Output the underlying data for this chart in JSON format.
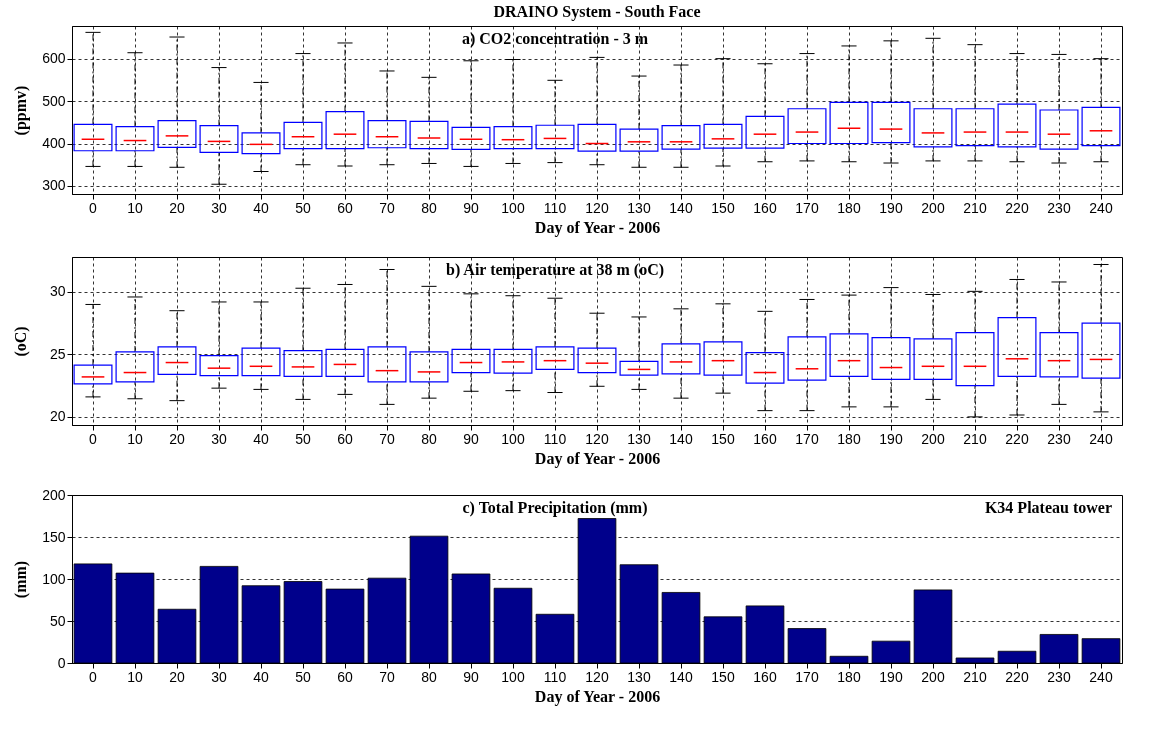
{
  "chart_data": [
    {
      "type": "box",
      "title": "DRAINO System - South Face",
      "subtitle": "a) CO2 concentration - 3 m",
      "xlabel": "Day of Year - 2006",
      "ylabel": "(ppmv)",
      "categories": [
        "0",
        "10",
        "20",
        "30",
        "40",
        "50",
        "60",
        "70",
        "80",
        "90",
        "100",
        "110",
        "120",
        "130",
        "140",
        "150",
        "160",
        "170",
        "180",
        "190",
        "200",
        "210",
        "220",
        "230",
        "240"
      ],
      "ylim": [
        281,
        677
      ],
      "yticks": [
        300,
        400,
        500,
        600
      ],
      "grid": true,
      "series": [
        {
          "color": "#0000ff",
          "boxes": [
            {
              "low": 346,
              "q1": 383,
              "median": 410,
              "q3": 445,
              "high": 662
            },
            {
              "low": 346,
              "q1": 383,
              "median": 407,
              "q3": 440,
              "high": 614
            },
            {
              "low": 344,
              "q1": 391,
              "median": 418,
              "q3": 454,
              "high": 651
            },
            {
              "low": 304,
              "q1": 379,
              "median": 405,
              "q3": 442,
              "high": 579
            },
            {
              "low": 334,
              "q1": 376,
              "median": 398,
              "q3": 425,
              "high": 544
            },
            {
              "low": 350,
              "q1": 388,
              "median": 416,
              "q3": 450,
              "high": 612
            },
            {
              "low": 347,
              "q1": 388,
              "median": 422,
              "q3": 475,
              "high": 637
            },
            {
              "low": 350,
              "q1": 390,
              "median": 416,
              "q3": 454,
              "high": 571
            },
            {
              "low": 353,
              "q1": 388,
              "median": 413,
              "q3": 452,
              "high": 556
            },
            {
              "low": 346,
              "q1": 386,
              "median": 410,
              "q3": 438,
              "high": 595
            },
            {
              "low": 353,
              "q1": 388,
              "median": 409,
              "q3": 440,
              "high": 598
            },
            {
              "low": 355,
              "q1": 388,
              "median": 412,
              "q3": 443,
              "high": 549
            },
            {
              "low": 350,
              "q1": 382,
              "median": 400,
              "q3": 445,
              "high": 603
            },
            {
              "low": 344,
              "q1": 382,
              "median": 404,
              "q3": 434,
              "high": 559
            },
            {
              "low": 344,
              "q1": 387,
              "median": 404,
              "q3": 442,
              "high": 585
            },
            {
              "low": 347,
              "q1": 389,
              "median": 411,
              "q3": 445,
              "high": 600
            },
            {
              "low": 357,
              "q1": 389,
              "median": 422,
              "q3": 464,
              "high": 588
            },
            {
              "low": 359,
              "q1": 400,
              "median": 427,
              "q3": 482,
              "high": 612
            },
            {
              "low": 357,
              "q1": 400,
              "median": 436,
              "q3": 497,
              "high": 630
            },
            {
              "low": 354,
              "q1": 402,
              "median": 434,
              "q3": 497,
              "high": 642
            },
            {
              "low": 359,
              "q1": 392,
              "median": 425,
              "q3": 482,
              "high": 648
            },
            {
              "low": 359,
              "q1": 395,
              "median": 427,
              "q3": 482,
              "high": 633
            },
            {
              "low": 357,
              "q1": 392,
              "median": 427,
              "q3": 493,
              "high": 612
            },
            {
              "low": 354,
              "q1": 387,
              "median": 422,
              "q3": 479,
              "high": 610
            },
            {
              "low": 357,
              "q1": 395,
              "median": 430,
              "q3": 485,
              "high": 600
            }
          ]
        }
      ]
    },
    {
      "type": "box",
      "title": "b) Air temperature at 38 m (oC)",
      "xlabel": "Day of Year - 2006",
      "ylabel": "(oC)",
      "categories": [
        "0",
        "10",
        "20",
        "30",
        "40",
        "50",
        "60",
        "70",
        "80",
        "90",
        "100",
        "110",
        "120",
        "130",
        "140",
        "150",
        "160",
        "170",
        "180",
        "190",
        "200",
        "210",
        "220",
        "230",
        "240"
      ],
      "ylim": [
        19.35,
        32.8
      ],
      "yticks": [
        20,
        25,
        30
      ],
      "grid": true,
      "series": [
        {
          "color": "#0000ff",
          "boxes": [
            {
              "low": 21.6,
              "q1": 22.65,
              "median": 23.2,
              "q3": 24.15,
              "high": 29.0
            },
            {
              "low": 21.45,
              "q1": 22.8,
              "median": 23.55,
              "q3": 25.2,
              "high": 29.6
            },
            {
              "low": 21.3,
              "q1": 23.4,
              "median": 24.35,
              "q3": 25.6,
              "high": 28.5
            },
            {
              "low": 22.3,
              "q1": 23.3,
              "median": 23.9,
              "q3": 24.9,
              "high": 29.2
            },
            {
              "low": 22.2,
              "q1": 23.3,
              "median": 24.05,
              "q3": 25.5,
              "high": 29.2
            },
            {
              "low": 21.4,
              "q1": 23.25,
              "median": 24.0,
              "q3": 25.3,
              "high": 30.3
            },
            {
              "low": 21.8,
              "q1": 23.25,
              "median": 24.2,
              "q3": 25.4,
              "high": 30.6
            },
            {
              "low": 21.0,
              "q1": 22.8,
              "median": 23.7,
              "q3": 25.6,
              "high": 31.8
            },
            {
              "low": 21.5,
              "q1": 22.8,
              "median": 23.6,
              "q3": 25.2,
              "high": 30.45
            },
            {
              "low": 22.05,
              "q1": 23.55,
              "median": 24.35,
              "q3": 25.4,
              "high": 29.85
            },
            {
              "low": 22.1,
              "q1": 23.5,
              "median": 24.4,
              "q3": 25.4,
              "high": 29.7
            },
            {
              "low": 21.95,
              "q1": 23.8,
              "median": 24.5,
              "q3": 25.6,
              "high": 29.5
            },
            {
              "low": 22.45,
              "q1": 23.55,
              "median": 24.3,
              "q3": 25.5,
              "high": 28.3
            },
            {
              "low": 22.2,
              "q1": 23.35,
              "median": 23.8,
              "q3": 24.45,
              "high": 28.0
            },
            {
              "low": 21.5,
              "q1": 23.45,
              "median": 24.4,
              "q3": 25.85,
              "high": 28.65
            },
            {
              "low": 21.9,
              "q1": 23.35,
              "median": 24.5,
              "q3": 26.0,
              "high": 29.05
            },
            {
              "low": 20.5,
              "q1": 22.7,
              "median": 23.55,
              "q3": 25.15,
              "high": 28.45
            },
            {
              "low": 20.5,
              "q1": 22.95,
              "median": 23.85,
              "q3": 26.4,
              "high": 29.4
            },
            {
              "low": 20.8,
              "q1": 23.25,
              "median": 24.5,
              "q3": 26.65,
              "high": 29.75
            },
            {
              "low": 20.8,
              "q1": 23.0,
              "median": 23.95,
              "q3": 26.35,
              "high": 30.35
            },
            {
              "low": 21.4,
              "q1": 23.0,
              "median": 24.05,
              "q3": 26.25,
              "high": 29.8
            },
            {
              "low": 20.0,
              "q1": 22.5,
              "median": 24.05,
              "q3": 26.75,
              "high": 30.05
            },
            {
              "low": 20.15,
              "q1": 23.25,
              "median": 24.65,
              "q3": 27.95,
              "high": 31.0
            },
            {
              "low": 21.0,
              "q1": 23.2,
              "median": 24.5,
              "q3": 26.75,
              "high": 30.8
            },
            {
              "low": 20.4,
              "q1": 23.1,
              "median": 24.6,
              "q3": 27.5,
              "high": 32.2
            }
          ]
        }
      ]
    },
    {
      "type": "bar",
      "title": "c) Total Precipitation (mm)",
      "xlabel": "Day of Year - 2006",
      "ylabel": "(mm)",
      "categories": [
        "0",
        "10",
        "20",
        "30",
        "40",
        "50",
        "60",
        "70",
        "80",
        "90",
        "100",
        "110",
        "120",
        "130",
        "140",
        "150",
        "160",
        "170",
        "180",
        "190",
        "200",
        "210",
        "220",
        "230",
        "240"
      ],
      "ylim": [
        0,
        200
      ],
      "yticks": [
        0,
        50,
        100,
        150,
        200
      ],
      "grid": "y",
      "annotations": [
        "K34 Plateau tower"
      ],
      "series": [
        {
          "color": "#00008b",
          "values": [
            118,
            107,
            64,
            115,
            92,
            97,
            88,
            101,
            151,
            106,
            89,
            58,
            172,
            117,
            84,
            55,
            68,
            41,
            8,
            26,
            87,
            6,
            14,
            34,
            29
          ]
        }
      ]
    }
  ]
}
